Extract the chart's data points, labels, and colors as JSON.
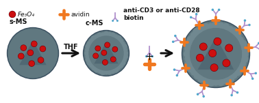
{
  "bg_color": "#ffffff",
  "sphere_color": "#607880",
  "sphere_dark": "#3a5060",
  "sphere_rough": "#708890",
  "fe3o4_color": "#cc1010",
  "fe3o4_dark": "#700008",
  "avidin_color": "#f07820",
  "antibody_color": "#b090cc",
  "biotin_color": "#50a8cc",
  "arrow_color": "#111111",
  "text_color": "#111111",
  "label_sMS": "s-MS",
  "label_cMS": "c-MS",
  "label_THF": "THF",
  "legend_fe3o4": "Fe₃O₄",
  "legend_avidin": "avidin",
  "legend_antibody": "anti-CD3 or anti-CD28\nbiotin",
  "title_fontsize": 7,
  "legend_fontsize": 6.5
}
